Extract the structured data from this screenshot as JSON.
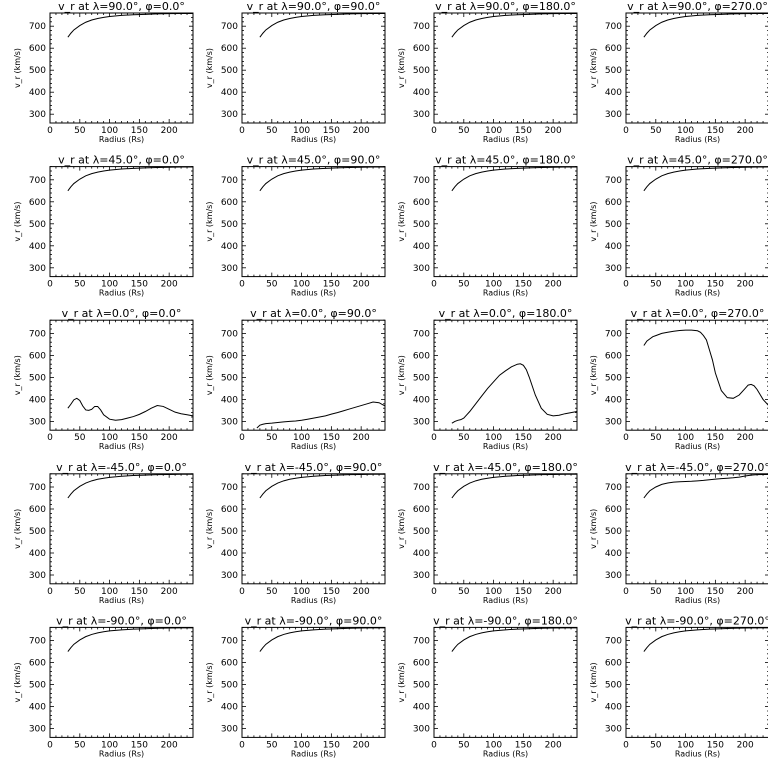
{
  "chart_data": [
    {
      "type": "line",
      "title": "v_r at λ=90.0°, φ=0.0°",
      "xlabel": "Radius (Rs)",
      "ylabel": "v_r (km/s)",
      "xlim": [
        0,
        240
      ],
      "ylim": [
        260,
        760
      ],
      "xticks": [
        0,
        50,
        100,
        150,
        200
      ],
      "yticks": [
        300,
        400,
        500,
        600,
        700
      ],
      "x": [
        30,
        35,
        40,
        50,
        60,
        70,
        80,
        90,
        100,
        120,
        140,
        160,
        180,
        200,
        220,
        240
      ],
      "y": [
        650,
        668,
        683,
        703,
        718,
        728,
        735,
        740,
        744,
        749,
        752,
        754,
        756,
        757,
        758,
        758
      ]
    },
    {
      "type": "line",
      "title": "v_r at λ=90.0°, φ=90.0°",
      "xlabel": "Radius (Rs)",
      "ylabel": "v_r (km/s)",
      "xlim": [
        0,
        240
      ],
      "ylim": [
        260,
        760
      ],
      "xticks": [
        0,
        50,
        100,
        150,
        200
      ],
      "yticks": [
        300,
        400,
        500,
        600,
        700
      ],
      "x": [
        30,
        35,
        40,
        50,
        60,
        70,
        80,
        90,
        100,
        120,
        140,
        160,
        180,
        200,
        220,
        240
      ],
      "y": [
        650,
        668,
        683,
        703,
        718,
        728,
        735,
        740,
        744,
        749,
        752,
        754,
        756,
        757,
        758,
        758
      ]
    },
    {
      "type": "line",
      "title": "v_r at λ=90.0°, φ=180.0°",
      "xlabel": "Radius (Rs)",
      "ylabel": "v_r (km/s)",
      "xlim": [
        0,
        240
      ],
      "ylim": [
        260,
        760
      ],
      "xticks": [
        0,
        50,
        100,
        150,
        200
      ],
      "yticks": [
        300,
        400,
        500,
        600,
        700
      ],
      "x": [
        30,
        35,
        40,
        50,
        60,
        70,
        80,
        90,
        100,
        120,
        140,
        160,
        180,
        200,
        220,
        240
      ],
      "y": [
        650,
        668,
        683,
        703,
        718,
        728,
        735,
        740,
        744,
        749,
        752,
        754,
        756,
        757,
        758,
        758
      ]
    },
    {
      "type": "line",
      "title": "v_r at λ=90.0°, φ=270.0°",
      "xlabel": "Radius (Rs)",
      "ylabel": "v_r (km/s)",
      "xlim": [
        0,
        240
      ],
      "ylim": [
        260,
        760
      ],
      "xticks": [
        0,
        50,
        100,
        150,
        200
      ],
      "yticks": [
        300,
        400,
        500,
        600,
        700
      ],
      "x": [
        30,
        35,
        40,
        50,
        60,
        70,
        80,
        90,
        100,
        120,
        140,
        160,
        180,
        200,
        220,
        240
      ],
      "y": [
        650,
        668,
        683,
        703,
        718,
        728,
        735,
        740,
        744,
        749,
        752,
        754,
        756,
        757,
        758,
        758
      ]
    },
    {
      "type": "line",
      "title": "v_r at λ=45.0°, φ=0.0°",
      "xlabel": "Radius (Rs)",
      "ylabel": "v_r (km/s)",
      "xlim": [
        0,
        240
      ],
      "ylim": [
        260,
        760
      ],
      "xticks": [
        0,
        50,
        100,
        150,
        200
      ],
      "yticks": [
        300,
        400,
        500,
        600,
        700
      ],
      "x": [
        30,
        35,
        40,
        50,
        60,
        70,
        80,
        90,
        100,
        120,
        140,
        160,
        180,
        200,
        220,
        240
      ],
      "y": [
        650,
        668,
        683,
        703,
        718,
        728,
        735,
        740,
        744,
        749,
        752,
        754,
        756,
        757,
        758,
        758
      ]
    },
    {
      "type": "line",
      "title": "v_r at λ=45.0°, φ=90.0°",
      "xlabel": "Radius (Rs)",
      "ylabel": "v_r (km/s)",
      "xlim": [
        0,
        240
      ],
      "ylim": [
        260,
        760
      ],
      "xticks": [
        0,
        50,
        100,
        150,
        200
      ],
      "yticks": [
        300,
        400,
        500,
        600,
        700
      ],
      "x": [
        30,
        35,
        40,
        50,
        60,
        70,
        80,
        90,
        100,
        120,
        140,
        160,
        180,
        200,
        220,
        240
      ],
      "y": [
        650,
        668,
        683,
        703,
        718,
        728,
        735,
        740,
        744,
        749,
        752,
        754,
        756,
        757,
        758,
        758
      ]
    },
    {
      "type": "line",
      "title": "v_r at λ=45.0°, φ=180.0°",
      "xlabel": "Radius (Rs)",
      "ylabel": "v_r (km/s)",
      "xlim": [
        0,
        240
      ],
      "ylim": [
        260,
        760
      ],
      "xticks": [
        0,
        50,
        100,
        150,
        200
      ],
      "yticks": [
        300,
        400,
        500,
        600,
        700
      ],
      "x": [
        30,
        35,
        40,
        50,
        60,
        70,
        80,
        90,
        100,
        120,
        140,
        160,
        180,
        200,
        220,
        240
      ],
      "y": [
        650,
        668,
        683,
        703,
        718,
        728,
        735,
        740,
        744,
        749,
        752,
        754,
        756,
        757,
        758,
        758
      ]
    },
    {
      "type": "line",
      "title": "v_r at λ=45.0°, φ=270.0°",
      "xlabel": "Radius (Rs)",
      "ylabel": "v_r (km/s)",
      "xlim": [
        0,
        240
      ],
      "ylim": [
        260,
        760
      ],
      "xticks": [
        0,
        50,
        100,
        150,
        200
      ],
      "yticks": [
        300,
        400,
        500,
        600,
        700
      ],
      "x": [
        30,
        35,
        40,
        50,
        60,
        70,
        80,
        90,
        100,
        120,
        140,
        160,
        180,
        200,
        220,
        240
      ],
      "y": [
        650,
        668,
        683,
        703,
        718,
        728,
        735,
        740,
        744,
        749,
        752,
        754,
        756,
        757,
        758,
        758
      ]
    },
    {
      "type": "line",
      "title": "v_r at λ=0.0°, φ=0.0°",
      "xlabel": "Radius (Rs)",
      "ylabel": "v_r (km/s)",
      "xlim": [
        0,
        240
      ],
      "ylim": [
        260,
        760
      ],
      "xticks": [
        0,
        50,
        100,
        150,
        200
      ],
      "yticks": [
        300,
        400,
        500,
        600,
        700
      ],
      "x": [
        30,
        35,
        40,
        45,
        50,
        55,
        60,
        65,
        70,
        75,
        80,
        85,
        90,
        100,
        110,
        120,
        130,
        140,
        150,
        160,
        170,
        180,
        190,
        200,
        210,
        220,
        230,
        240
      ],
      "y": [
        360,
        378,
        398,
        405,
        395,
        370,
        352,
        350,
        355,
        368,
        368,
        352,
        330,
        310,
        305,
        308,
        315,
        322,
        332,
        345,
        360,
        372,
        368,
        355,
        342,
        335,
        330,
        325
      ]
    },
    {
      "type": "line",
      "title": "v_r at λ=0.0°, φ=90.0°",
      "xlabel": "Radius (Rs)",
      "ylabel": "v_r (km/s)",
      "xlim": [
        0,
        240
      ],
      "ylim": [
        260,
        760
      ],
      "xticks": [
        0,
        50,
        100,
        150,
        200
      ],
      "yticks": [
        300,
        400,
        500,
        600,
        700
      ],
      "x": [
        25,
        30,
        35,
        40,
        50,
        60,
        70,
        80,
        90,
        100,
        110,
        120,
        130,
        140,
        150,
        160,
        170,
        180,
        190,
        200,
        210,
        220,
        230,
        240
      ],
      "y": [
        270,
        283,
        287,
        290,
        292,
        295,
        298,
        300,
        302,
        305,
        310,
        315,
        320,
        325,
        333,
        340,
        348,
        356,
        364,
        372,
        380,
        388,
        385,
        370
      ]
    },
    {
      "type": "line",
      "title": "v_r at λ=0.0°, φ=180.0°",
      "xlabel": "Radius (Rs)",
      "ylabel": "v_r (km/s)",
      "xlim": [
        0,
        240
      ],
      "ylim": [
        260,
        760
      ],
      "xticks": [
        0,
        50,
        100,
        150,
        200
      ],
      "yticks": [
        300,
        400,
        500,
        600,
        700
      ],
      "x": [
        30,
        35,
        40,
        45,
        50,
        55,
        60,
        70,
        80,
        90,
        100,
        110,
        120,
        130,
        140,
        145,
        150,
        155,
        160,
        170,
        180,
        190,
        200,
        210,
        220,
        230,
        240
      ],
      "y": [
        292,
        300,
        305,
        308,
        315,
        330,
        345,
        380,
        415,
        450,
        480,
        510,
        530,
        548,
        560,
        562,
        555,
        535,
        500,
        420,
        360,
        332,
        325,
        328,
        335,
        340,
        345
      ]
    },
    {
      "type": "line",
      "title": "v_r at λ=0.0°, φ=270.0°",
      "xlabel": "Radius (Rs)",
      "ylabel": "v_r (km/s)",
      "xlim": [
        0,
        240
      ],
      "ylim": [
        260,
        760
      ],
      "xticks": [
        0,
        50,
        100,
        150,
        200
      ],
      "yticks": [
        300,
        400,
        500,
        600,
        700
      ],
      "x": [
        30,
        35,
        40,
        45,
        50,
        60,
        70,
        80,
        90,
        100,
        110,
        120,
        125,
        130,
        135,
        140,
        145,
        150,
        160,
        170,
        180,
        190,
        200,
        205,
        210,
        215,
        220,
        230,
        240
      ],
      "y": [
        645,
        665,
        675,
        685,
        690,
        700,
        705,
        710,
        713,
        715,
        715,
        712,
        705,
        690,
        670,
        625,
        580,
        520,
        440,
        408,
        405,
        420,
        450,
        465,
        468,
        462,
        445,
        400,
        370
      ]
    },
    {
      "type": "line",
      "title": "v_r at λ=-45.0°, φ=0.0°",
      "xlabel": "Radius (Rs)",
      "ylabel": "v_r (km/s)",
      "xlim": [
        0,
        240
      ],
      "ylim": [
        260,
        760
      ],
      "xticks": [
        0,
        50,
        100,
        150,
        200
      ],
      "yticks": [
        300,
        400,
        500,
        600,
        700
      ],
      "x": [
        30,
        35,
        40,
        50,
        60,
        70,
        80,
        90,
        100,
        120,
        140,
        160,
        180,
        200,
        220,
        240
      ],
      "y": [
        650,
        668,
        683,
        703,
        718,
        728,
        735,
        740,
        744,
        749,
        752,
        754,
        756,
        757,
        758,
        758
      ]
    },
    {
      "type": "line",
      "title": "v_r at λ=-45.0°, φ=90.0°",
      "xlabel": "Radius (Rs)",
      "ylabel": "v_r (km/s)",
      "xlim": [
        0,
        240
      ],
      "ylim": [
        260,
        760
      ],
      "xticks": [
        0,
        50,
        100,
        150,
        200
      ],
      "yticks": [
        300,
        400,
        500,
        600,
        700
      ],
      "x": [
        30,
        35,
        40,
        50,
        60,
        70,
        80,
        90,
        100,
        120,
        140,
        160,
        180,
        200,
        220,
        240
      ],
      "y": [
        650,
        668,
        683,
        703,
        718,
        728,
        735,
        740,
        744,
        749,
        752,
        754,
        756,
        757,
        758,
        758
      ]
    },
    {
      "type": "line",
      "title": "v_r at λ=-45.0°, φ=180.0°",
      "xlabel": "Radius (Rs)",
      "ylabel": "v_r (km/s)",
      "xlim": [
        0,
        240
      ],
      "ylim": [
        260,
        760
      ],
      "xticks": [
        0,
        50,
        100,
        150,
        200
      ],
      "yticks": [
        300,
        400,
        500,
        600,
        700
      ],
      "x": [
        30,
        35,
        40,
        50,
        60,
        70,
        80,
        90,
        100,
        120,
        140,
        160,
        180,
        200,
        220,
        240
      ],
      "y": [
        650,
        668,
        683,
        703,
        718,
        728,
        735,
        740,
        744,
        749,
        752,
        754,
        756,
        757,
        758,
        758
      ]
    },
    {
      "type": "line",
      "title": "v_r at λ=-45.0°, φ=270.0°",
      "xlabel": "Radius (Rs)",
      "ylabel": "v_r (km/s)",
      "xlim": [
        0,
        240
      ],
      "ylim": [
        260,
        760
      ],
      "xticks": [
        0,
        50,
        100,
        150,
        200
      ],
      "yticks": [
        300,
        400,
        500,
        600,
        700
      ],
      "x": [
        30,
        35,
        40,
        50,
        60,
        70,
        80,
        90,
        100,
        110,
        120,
        130,
        140,
        150,
        160,
        170,
        180,
        190,
        200,
        210,
        220,
        230,
        240
      ],
      "y": [
        650,
        668,
        683,
        700,
        712,
        718,
        722,
        724,
        725,
        726,
        728,
        730,
        733,
        736,
        738,
        740,
        742,
        745,
        750,
        754,
        756,
        757,
        757
      ]
    },
    {
      "type": "line",
      "title": "v_r at λ=-90.0°, φ=0.0°",
      "xlabel": "Radius (Rs)",
      "ylabel": "v_r (km/s)",
      "xlim": [
        0,
        240
      ],
      "ylim": [
        260,
        760
      ],
      "xticks": [
        0,
        50,
        100,
        150,
        200
      ],
      "yticks": [
        300,
        400,
        500,
        600,
        700
      ],
      "x": [
        30,
        35,
        40,
        50,
        60,
        70,
        80,
        90,
        100,
        120,
        140,
        160,
        180,
        200,
        220,
        240
      ],
      "y": [
        650,
        668,
        683,
        703,
        718,
        728,
        735,
        740,
        744,
        749,
        752,
        754,
        756,
        757,
        758,
        758
      ]
    },
    {
      "type": "line",
      "title": "v_r at λ=-90.0°, φ=90.0°",
      "xlabel": "Radius (Rs)",
      "ylabel": "v_r (km/s)",
      "xlim": [
        0,
        240
      ],
      "ylim": [
        260,
        760
      ],
      "xticks": [
        0,
        50,
        100,
        150,
        200
      ],
      "yticks": [
        300,
        400,
        500,
        600,
        700
      ],
      "x": [
        30,
        35,
        40,
        50,
        60,
        70,
        80,
        90,
        100,
        120,
        140,
        160,
        180,
        200,
        220,
        240
      ],
      "y": [
        650,
        668,
        683,
        703,
        718,
        728,
        735,
        740,
        744,
        749,
        752,
        754,
        756,
        757,
        758,
        758
      ]
    },
    {
      "type": "line",
      "title": "v_r at λ=-90.0°, φ=180.0°",
      "xlabel": "Radius (Rs)",
      "ylabel": "v_r (km/s)",
      "xlim": [
        0,
        240
      ],
      "ylim": [
        260,
        760
      ],
      "xticks": [
        0,
        50,
        100,
        150,
        200
      ],
      "yticks": [
        300,
        400,
        500,
        600,
        700
      ],
      "x": [
        30,
        35,
        40,
        50,
        60,
        70,
        80,
        90,
        100,
        120,
        140,
        160,
        180,
        200,
        220,
        240
      ],
      "y": [
        650,
        668,
        683,
        703,
        718,
        728,
        735,
        740,
        744,
        749,
        752,
        754,
        756,
        757,
        758,
        758
      ]
    },
    {
      "type": "line",
      "title": "v_r at λ=-90.0°, φ=270.0°",
      "xlabel": "Radius (Rs)",
      "ylabel": "v_r (km/s)",
      "xlim": [
        0,
        240
      ],
      "ylim": [
        260,
        760
      ],
      "xticks": [
        0,
        50,
        100,
        150,
        200
      ],
      "yticks": [
        300,
        400,
        500,
        600,
        700
      ],
      "x": [
        30,
        35,
        40,
        50,
        60,
        70,
        80,
        90,
        100,
        120,
        140,
        160,
        180,
        200,
        220,
        240
      ],
      "y": [
        650,
        668,
        683,
        703,
        718,
        728,
        735,
        740,
        744,
        749,
        752,
        754,
        756,
        757,
        758,
        758
      ]
    }
  ]
}
